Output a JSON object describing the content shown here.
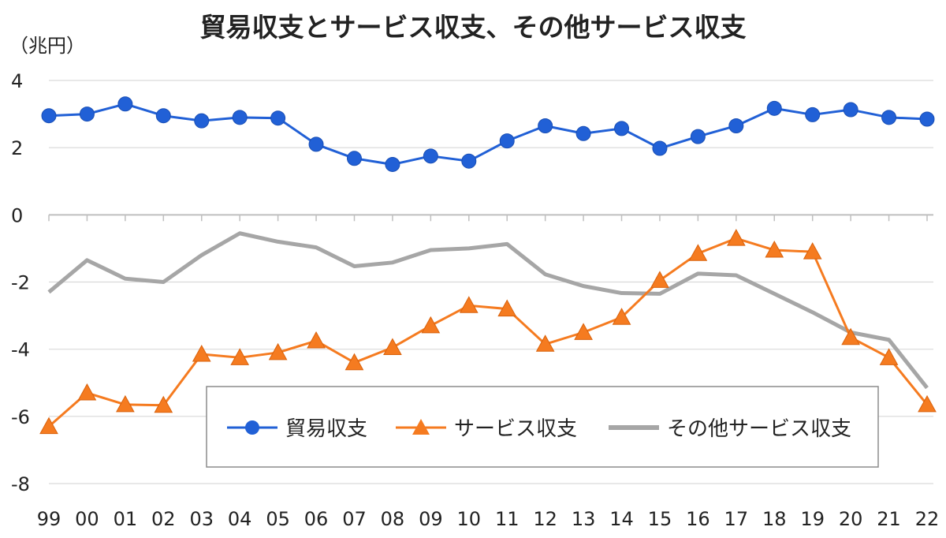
{
  "chart_data": {
    "type": "line",
    "title": "貿易収支とサービス収支、その他サービス収支",
    "unit_label": "（兆円）",
    "xlabel": "",
    "ylabel": "",
    "ylim": [
      -8,
      4
    ],
    "yticks": [
      4,
      2,
      0,
      -2,
      -4,
      -6,
      -8
    ],
    "categories": [
      "99",
      "00",
      "01",
      "02",
      "03",
      "04",
      "05",
      "06",
      "07",
      "08",
      "09",
      "10",
      "11",
      "12",
      "13",
      "14",
      "15",
      "16",
      "17",
      "18",
      "19",
      "20",
      "21",
      "22"
    ],
    "series": [
      {
        "name": "貿易収支",
        "color": "#2160d6",
        "marker": "circle",
        "values": [
          2.95,
          3.0,
          3.3,
          2.95,
          2.8,
          2.9,
          2.88,
          2.1,
          1.68,
          1.5,
          1.75,
          1.6,
          2.2,
          2.65,
          2.42,
          2.57,
          1.98,
          2.33,
          2.65,
          3.17,
          2.98,
          3.13,
          2.9,
          2.85
        ]
      },
      {
        "name": "サービス収支",
        "color": "#f57b20",
        "marker": "triangle",
        "values": [
          -6.3,
          -5.3,
          -5.65,
          -5.67,
          -4.15,
          -4.25,
          -4.1,
          -3.75,
          -4.4,
          -3.95,
          -3.3,
          -2.7,
          -2.8,
          -3.85,
          -3.5,
          -3.05,
          -1.95,
          -1.15,
          -0.7,
          -1.05,
          -1.1,
          -3.65,
          -4.25,
          -5.65
        ]
      },
      {
        "name": "その他サービス収支",
        "color": "#a6a6a6",
        "marker": "none",
        "values": [
          -2.3,
          -1.35,
          -1.9,
          -2.0,
          -1.2,
          -0.55,
          -0.8,
          -0.97,
          -1.53,
          -1.42,
          -1.05,
          -1.0,
          -0.87,
          -1.77,
          -2.12,
          -2.33,
          -2.35,
          -1.75,
          -1.8,
          -2.35,
          -2.9,
          -3.5,
          -3.72,
          -5.15
        ]
      }
    ],
    "grid": true,
    "legend_position": "bottom-center"
  }
}
